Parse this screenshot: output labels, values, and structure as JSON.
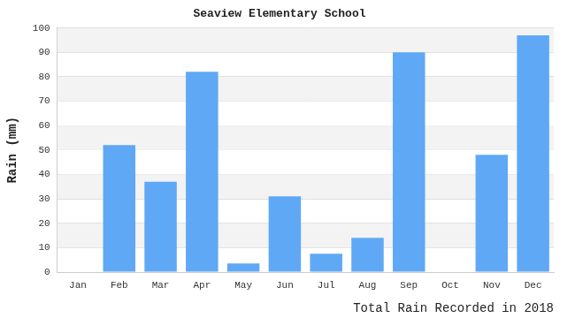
{
  "chart_data": {
    "type": "bar",
    "title": "Seaview Elementary School",
    "xlabel": "Total Rain Recorded in 2018",
    "ylabel": "Rain (mm)",
    "categories": [
      "Jan",
      "Feb",
      "Mar",
      "Apr",
      "May",
      "Jun",
      "Jul",
      "Aug",
      "Sep",
      "Oct",
      "Nov",
      "Dec"
    ],
    "values": [
      0,
      52,
      37,
      82,
      3.5,
      31,
      7.5,
      14,
      90,
      0,
      48,
      97
    ],
    "color": "#5fa8f5",
    "ylim": [
      0,
      100
    ],
    "yticks": [
      0,
      10,
      20,
      30,
      40,
      50,
      60,
      70,
      80,
      90,
      100
    ],
    "grid": true
  }
}
